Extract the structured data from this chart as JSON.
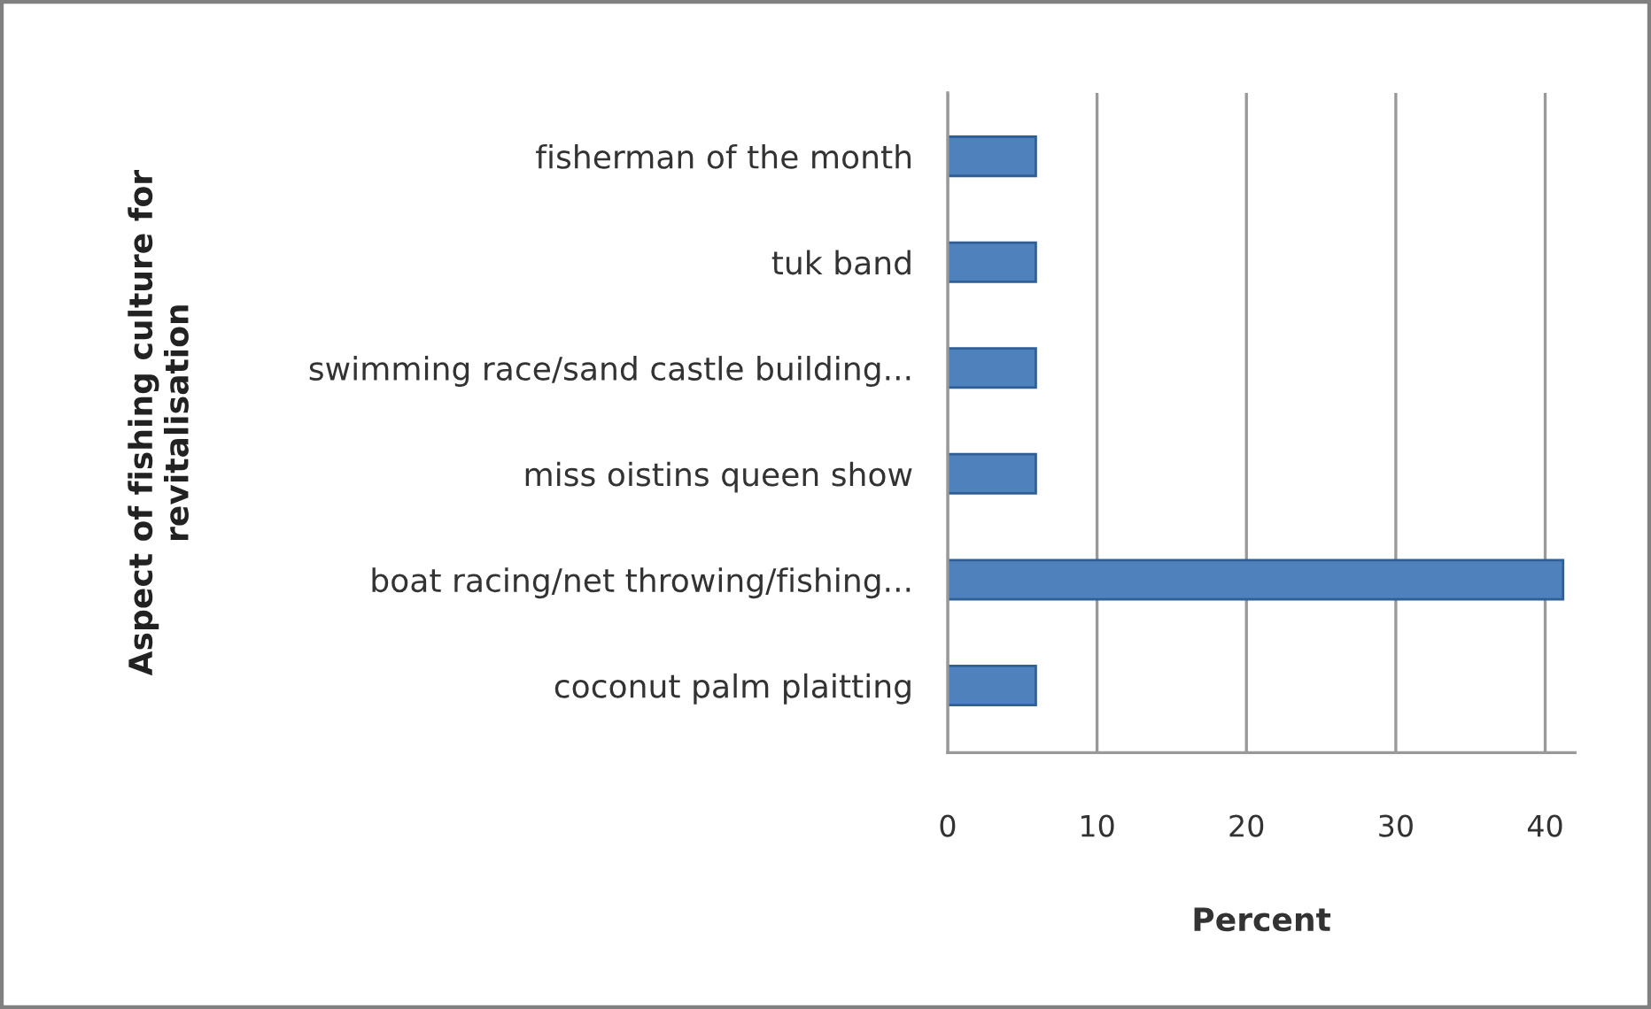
{
  "chart_data": {
    "type": "bar",
    "orientation": "horizontal",
    "categories": [
      "fisherman of the month",
      "tuk band",
      "swimming race/sand castle building...",
      "miss oistins queen show",
      "boat racing/net throwing/fishing...",
      "coconut palm plaitting"
    ],
    "values": [
      5.9,
      5.9,
      5.9,
      5.9,
      41.2,
      5.9
    ],
    "color": "#4f81bd",
    "xlabel": "Percent",
    "ylabel": "Aspect of fishing culture for\nrevitalisation",
    "xlim": [
      0,
      42
    ],
    "xticks": [
      0,
      10,
      20,
      30,
      40
    ],
    "grid": "x",
    "legend": false
  }
}
